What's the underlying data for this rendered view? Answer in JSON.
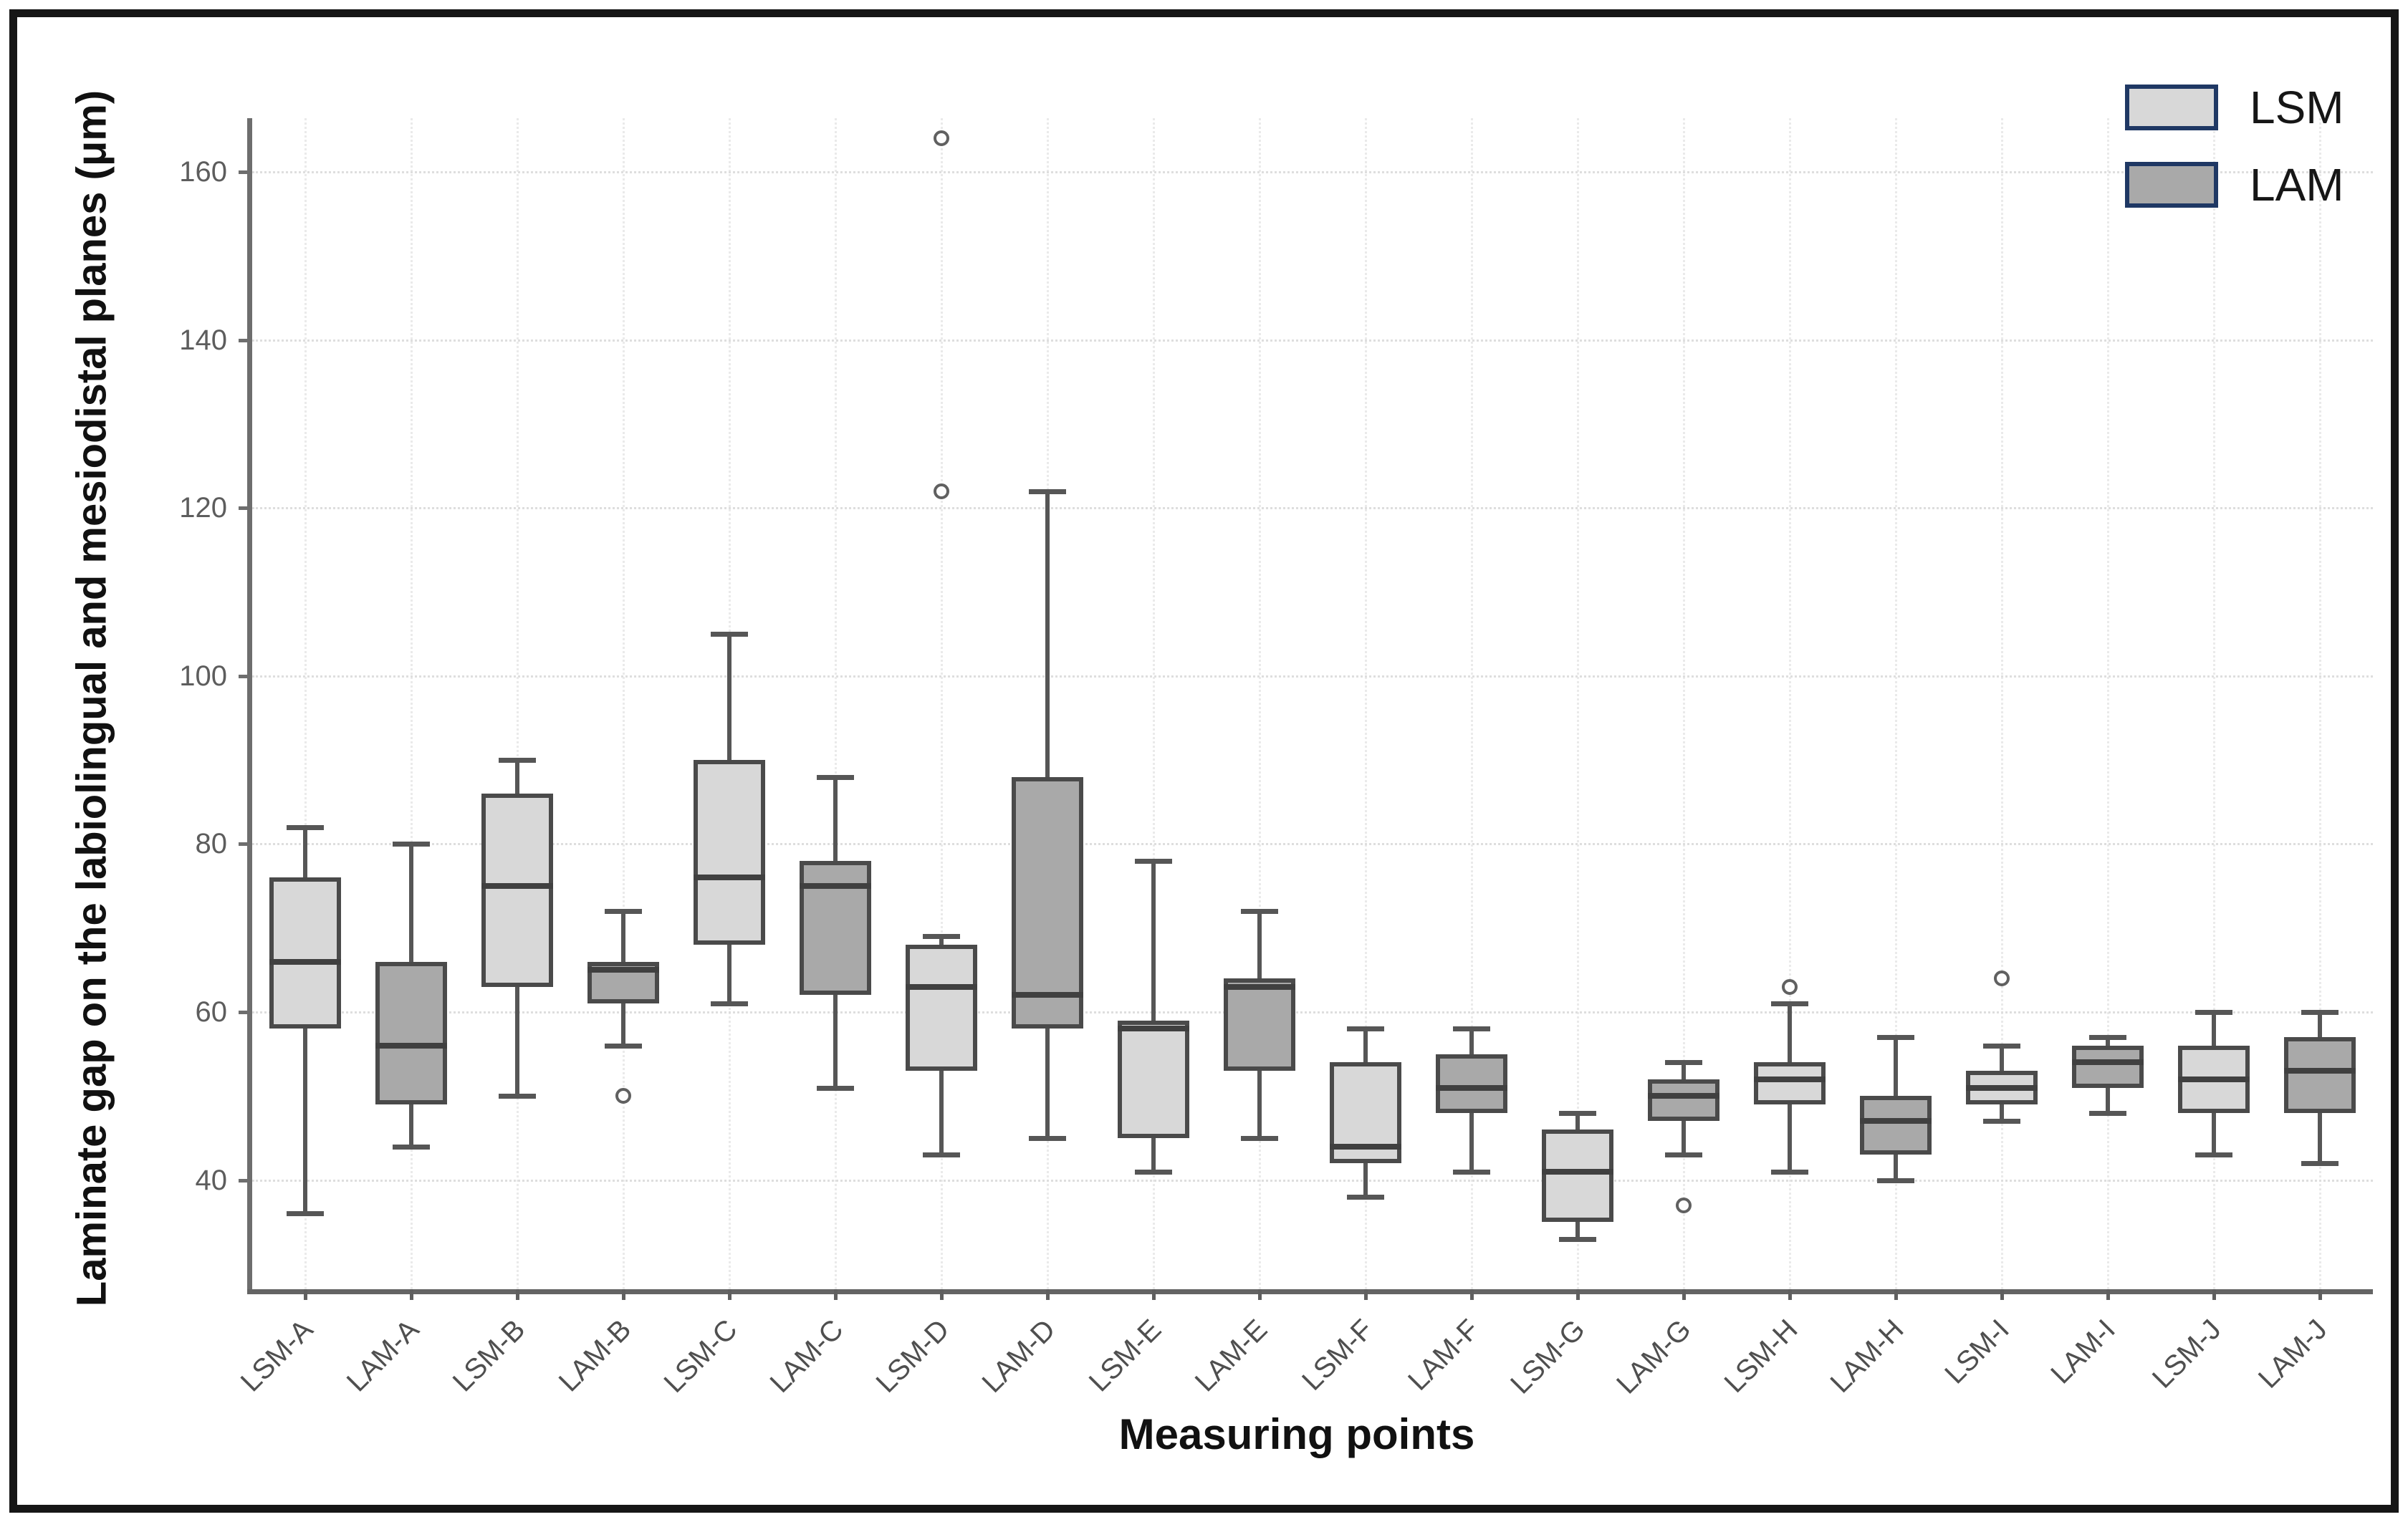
{
  "figure": {
    "y_axis_title": "Laminate gap on the labiolingual and mesiodistal planes (μm)",
    "x_axis_title": "Measuring points"
  },
  "style": {
    "figure_border": "#161616",
    "axis_color": "#6e6e6e",
    "grid_color": "#dedede",
    "tick_label_color": "#5d5d5d",
    "box_border": "#4a4a4a",
    "median_color": "#404040",
    "whisker_color": "#565656",
    "outlier_color": "#606060",
    "legend_border": "#1f3864",
    "lsm_fill": "#d8d8d8",
    "lam_fill": "#a9a9a9"
  },
  "chart_data": {
    "type": "boxplot",
    "title": "",
    "xlabel": "Measuring points",
    "ylabel": "Laminate gap on the labiolingual and mesiodistal planes (μm)",
    "ylim": [
      27,
      166.4
    ],
    "yticks": [
      40,
      60,
      80,
      100,
      120,
      140,
      160
    ],
    "grid": "dotted, horizontal and vertical at category centers",
    "legend_position": "top-right",
    "series": [
      {
        "name": "LSM",
        "fill": "#d8d8d8"
      },
      {
        "name": "LAM",
        "fill": "#a9a9a9"
      }
    ],
    "categories": [
      "LSM-A",
      "LAM-A",
      "LSM-B",
      "LAM-B",
      "LSM-C",
      "LAM-C",
      "LSM-D",
      "LAM-D",
      "LSM-E",
      "LAM-E",
      "LSM-F",
      "LAM-F",
      "LSM-G",
      "LAM-G",
      "LSM-H",
      "LAM-H",
      "LSM-I",
      "LAM-I",
      "LSM-J",
      "LAM-J"
    ],
    "boxes": [
      {
        "label": "LSM-A",
        "series": "LSM",
        "whisker_low": 36,
        "q1": 58,
        "median": 66,
        "q3": 76,
        "whisker_high": 82,
        "outliers": []
      },
      {
        "label": "LAM-A",
        "series": "LAM",
        "whisker_low": 44,
        "q1": 49,
        "median": 56,
        "q3": 66,
        "whisker_high": 80,
        "outliers": []
      },
      {
        "label": "LSM-B",
        "series": "LSM",
        "whisker_low": 50,
        "q1": 63,
        "median": 75,
        "q3": 86,
        "whisker_high": 90,
        "outliers": []
      },
      {
        "label": "LAM-B",
        "series": "LAM",
        "whisker_low": 56,
        "q1": 61,
        "median": 65,
        "q3": 66,
        "whisker_high": 72,
        "outliers": [
          50
        ]
      },
      {
        "label": "LSM-C",
        "series": "LSM",
        "whisker_low": 61,
        "q1": 68,
        "median": 76,
        "q3": 90,
        "whisker_high": 105,
        "outliers": []
      },
      {
        "label": "LAM-C",
        "series": "LAM",
        "whisker_low": 51,
        "q1": 62,
        "median": 75,
        "q3": 78,
        "whisker_high": 88,
        "outliers": []
      },
      {
        "label": "LSM-D",
        "series": "LSM",
        "whisker_low": 43,
        "q1": 53,
        "median": 63,
        "q3": 68,
        "whisker_high": 69,
        "outliers": [
          122,
          164
        ]
      },
      {
        "label": "LAM-D",
        "series": "LAM",
        "whisker_low": 45,
        "q1": 58,
        "median": 62,
        "q3": 88,
        "whisker_high": 122,
        "outliers": []
      },
      {
        "label": "LSM-E",
        "series": "LSM",
        "whisker_low": 41,
        "q1": 45,
        "median": 58,
        "q3": 59,
        "whisker_high": 78,
        "outliers": []
      },
      {
        "label": "LAM-E",
        "series": "LAM",
        "whisker_low": 45,
        "q1": 53,
        "median": 63,
        "q3": 64,
        "whisker_high": 72,
        "outliers": []
      },
      {
        "label": "LSM-F",
        "series": "LSM",
        "whisker_low": 38,
        "q1": 42,
        "median": 44,
        "q3": 54,
        "whisker_high": 58,
        "outliers": []
      },
      {
        "label": "LAM-F",
        "series": "LAM",
        "whisker_low": 41,
        "q1": 48,
        "median": 51,
        "q3": 55,
        "whisker_high": 58,
        "outliers": []
      },
      {
        "label": "LSM-G",
        "series": "LSM",
        "whisker_low": 33,
        "q1": 35,
        "median": 41,
        "q3": 46,
        "whisker_high": 48,
        "outliers": []
      },
      {
        "label": "LAM-G",
        "series": "LAM",
        "whisker_low": 43,
        "q1": 47,
        "median": 50,
        "q3": 52,
        "whisker_high": 54,
        "outliers": [
          37
        ]
      },
      {
        "label": "LSM-H",
        "series": "LSM",
        "whisker_low": 41,
        "q1": 49,
        "median": 52,
        "q3": 54,
        "whisker_high": 61,
        "outliers": [
          63
        ]
      },
      {
        "label": "LAM-H",
        "series": "LAM",
        "whisker_low": 40,
        "q1": 43,
        "median": 47,
        "q3": 50,
        "whisker_high": 57,
        "outliers": []
      },
      {
        "label": "LSM-I",
        "series": "LSM",
        "whisker_low": 47,
        "q1": 49,
        "median": 51,
        "q3": 53,
        "whisker_high": 56,
        "outliers": [
          64
        ]
      },
      {
        "label": "LAM-I",
        "series": "LAM",
        "whisker_low": 48,
        "q1": 51,
        "median": 54,
        "q3": 56,
        "whisker_high": 57,
        "outliers": []
      },
      {
        "label": "LSM-J",
        "series": "LSM",
        "whisker_low": 43,
        "q1": 48,
        "median": 52,
        "q3": 56,
        "whisker_high": 60,
        "outliers": []
      },
      {
        "label": "LAM-J",
        "series": "LAM",
        "whisker_low": 42,
        "q1": 48,
        "median": 53,
        "q3": 57,
        "whisker_high": 60,
        "outliers": []
      }
    ]
  }
}
